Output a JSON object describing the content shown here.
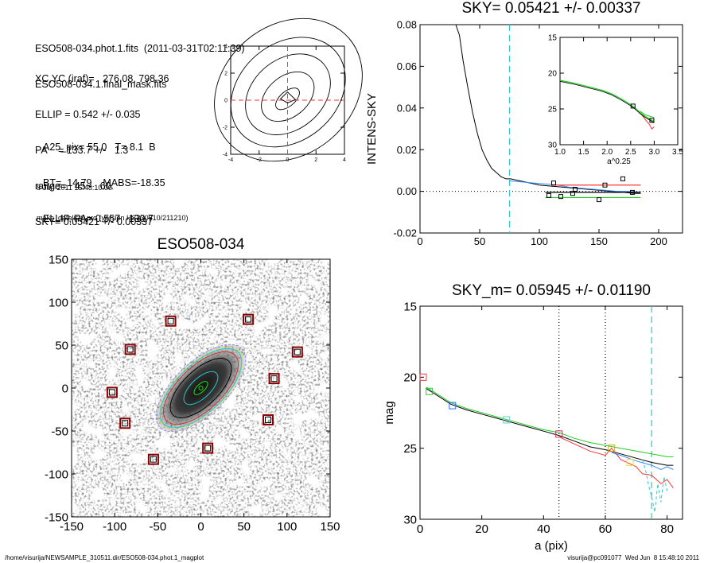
{
  "header": {
    "line1": "ESO508-034.phot.1.fits  (2011-03-31T02:11:39)",
    "line2": "ESO508-034.1.final_mask.fits",
    "xcyc": "XC,YC (iraf)=   276.08, 798.36",
    "ellip": "ELLIP = 0.542 +/- 0.035",
    "pa": "PA    = 133.7 +/-   1.3",
    "range": "range=   45.-   60.",
    "sky": "SKY= 0.05421 +/- 0.00337",
    "a25": "A25_pix= 55.0   T= 8.1  B",
    "bt": "BT=  14.79    MABS=-18.35",
    "ellip_pa": "ELLIP, PA= 0.557   130.7",
    "date": "8-Jun-2011 15:48:10.00",
    "prog": "make_datalist0.pro (version HS230610/211210)"
  },
  "footer": {
    "path": "/home/visurija/NEWSAMPLE_310511.dir/ESO508-034.phot.1_magplot",
    "user": "visurija@pc091077  Wed Jun  8 15:48:10 2011"
  },
  "chart_data": [
    {
      "id": "contour",
      "type": "contour",
      "xlim": [
        -4,
        4
      ],
      "ylim": [
        -4,
        4
      ],
      "xticks": [
        "-4",
        "-2",
        "0",
        "2",
        "4"
      ],
      "yticks": [
        "-4",
        "-2",
        "0",
        "2",
        "4"
      ],
      "colors": {
        "crosshair": "#ff3333",
        "contour": "#000000"
      }
    },
    {
      "id": "intens",
      "type": "line",
      "title": "SKY= 0.05421 +/- 0.00337",
      "ylabel": "INTENS-SKY",
      "xlim": [
        0,
        220
      ],
      "ylim": [
        -0.02,
        0.08
      ],
      "xticks": [
        "0",
        "50",
        "100",
        "150",
        "200"
      ],
      "yticks": [
        "-0.02",
        "0.00",
        "0.02",
        "0.04",
        "0.06",
        "0.08"
      ],
      "vline_x": 75,
      "black_profile": {
        "x": [
          30,
          33,
          36,
          40,
          44,
          48,
          52,
          56,
          60,
          64,
          68,
          72,
          76,
          80,
          84,
          88,
          92,
          96,
          100,
          110,
          120,
          130,
          140,
          150,
          160,
          170,
          180,
          185
        ],
        "y": [
          0.08,
          0.075,
          0.063,
          0.05,
          0.038,
          0.028,
          0.02,
          0.015,
          0.011,
          0.009,
          0.007,
          0.006,
          0.006,
          0.0055,
          0.005,
          0.0045,
          0.004,
          0.0035,
          0.003,
          0.0025,
          0.002,
          0.0015,
          0.001,
          0.0005,
          0.0,
          -0.0005,
          -0.001,
          -0.001
        ]
      },
      "blue_profile": {
        "x": [
          75,
          85,
          95,
          105,
          115,
          125,
          135,
          145,
          155,
          165,
          175,
          185
        ],
        "y": [
          0.005,
          0.0045,
          0.004,
          0.0035,
          0.003,
          0.002,
          0.0015,
          0.001,
          0.0005,
          0.0,
          0.0,
          -0.0005
        ]
      },
      "sky_levels": [
        {
          "color": "#ff3333",
          "y": 0.003,
          "x": [
            110,
            185
          ]
        },
        {
          "color": "#000000",
          "y": -0.0005,
          "x": [
            105,
            185
          ]
        },
        {
          "color": "#22cc22",
          "y": -0.003,
          "x": [
            105,
            185
          ]
        }
      ],
      "squares": [
        [
          108,
          -0.002
        ],
        [
          112,
          0.004
        ],
        [
          128,
          -0.001
        ],
        [
          130,
          0.001
        ],
        [
          150,
          -0.004
        ],
        [
          155,
          0.003
        ],
        [
          170,
          0.006
        ],
        [
          178,
          -0.0005
        ],
        [
          118,
          -0.0025
        ]
      ]
    },
    {
      "id": "inset",
      "type": "line",
      "xlabel": "a^0.25",
      "xlim": [
        1.0,
        3.5
      ],
      "ylim": [
        30,
        15
      ],
      "xticks": [
        "1.0",
        "1.5",
        "2.0",
        "2.5",
        "3.0",
        "3.5"
      ],
      "yticks": [
        "15",
        "20",
        "25",
        "30"
      ],
      "profile": {
        "x": [
          1.0,
          1.3,
          1.6,
          1.9,
          2.1,
          2.3,
          2.5,
          2.6,
          2.7,
          2.8,
          2.9,
          3.0
        ],
        "y": [
          21.0,
          21.4,
          21.9,
          22.4,
          22.9,
          23.6,
          24.4,
          24.9,
          25.5,
          26.0,
          26.4,
          26.8
        ]
      },
      "red_tail": {
        "x": [
          2.7,
          2.8,
          2.9,
          2.95,
          3.0
        ],
        "y": [
          25.5,
          26.4,
          27.2,
          27.8,
          27.5
        ]
      },
      "green_tail": {
        "x": [
          2.7,
          2.8,
          2.9,
          3.0
        ],
        "y": [
          25.3,
          25.8,
          26.0,
          26.2
        ]
      },
      "squares": [
        [
          2.55,
          24.6
        ],
        [
          2.95,
          26.6
        ]
      ]
    },
    {
      "id": "image",
      "type": "image",
      "title": "ESO508-034",
      "xlim": [
        -150,
        150
      ],
      "ylim": [
        -150,
        150
      ],
      "xticks": [
        "-150",
        "-100",
        "-50",
        "0",
        "50",
        "100",
        "150"
      ],
      "yticks": [
        "-150",
        "-100",
        "-50",
        "0",
        "50",
        "100",
        "150"
      ],
      "pa_deg": 133.7,
      "ellipses": [
        {
          "a": 10,
          "color": "#22dd22"
        },
        {
          "a": 25,
          "color": "#22cccc"
        },
        {
          "a": 45,
          "color": "#000000"
        },
        {
          "a": 55,
          "color": "#cc3333"
        },
        {
          "a": 60,
          "color": "#22cccc"
        },
        {
          "a": 62,
          "color": "#e6e64d"
        },
        {
          "a": 66,
          "color": "#8888ff"
        }
      ],
      "boxes": [
        [
          -82,
          45
        ],
        [
          -103,
          -5
        ],
        [
          -88,
          -41
        ],
        [
          -35,
          78
        ],
        [
          55,
          80
        ],
        [
          112,
          42
        ],
        [
          85,
          11
        ],
        [
          78,
          -37
        ],
        [
          8,
          -70
        ],
        [
          -55,
          -83
        ]
      ]
    },
    {
      "id": "mag",
      "type": "line",
      "title": "SKY_m=  0.05945 +/- 0.01190",
      "xlabel": "a (pix)",
      "ylabel": "mag",
      "xlim": [
        0,
        85
      ],
      "ylim": [
        30,
        15
      ],
      "xticks": [
        "0",
        "20",
        "40",
        "60",
        "80"
      ],
      "yticks": [
        "15",
        "20",
        "25",
        "30"
      ],
      "vlines": [
        {
          "x": 45,
          "color": "#000000",
          "style": "dotted"
        },
        {
          "x": 60,
          "color": "#000000",
          "style": "dotted"
        },
        {
          "x": 75,
          "color": "#22cccc",
          "style": "dashed"
        }
      ],
      "series": [
        {
          "color": "#000000",
          "x": [
            2,
            5,
            10,
            15,
            20,
            25,
            30,
            35,
            40,
            45,
            50,
            55,
            60,
            65,
            70,
            75,
            80,
            82
          ],
          "y": [
            20.8,
            21.2,
            21.9,
            22.3,
            22.6,
            22.9,
            23.2,
            23.5,
            23.8,
            24.1,
            24.5,
            24.9,
            25.1,
            25.4,
            25.7,
            26.0,
            26.2,
            26.2
          ]
        },
        {
          "color": "#22cc22",
          "x": [
            2,
            5,
            10,
            15,
            20,
            25,
            30,
            35,
            40,
            45,
            50,
            55,
            60,
            65,
            70,
            75,
            80,
            82
          ],
          "y": [
            20.7,
            21.1,
            21.8,
            22.2,
            22.5,
            22.8,
            23.1,
            23.4,
            23.7,
            23.9,
            24.3,
            24.6,
            24.8,
            25.0,
            25.2,
            25.4,
            25.6,
            25.6
          ]
        },
        {
          "color": "#ff3333",
          "x": [
            45,
            50,
            55,
            60,
            62,
            65,
            70,
            72,
            75,
            78,
            80,
            82
          ],
          "y": [
            24.2,
            24.7,
            25.2,
            25.5,
            25.0,
            25.8,
            26.3,
            26.8,
            26.9,
            27.5,
            27.2,
            27.8
          ]
        },
        {
          "color": "#3388ff",
          "x": [
            62,
            65,
            70,
            75,
            78,
            80,
            82
          ],
          "y": [
            25.3,
            25.5,
            25.9,
            26.2,
            26.5,
            26.3,
            26.5
          ]
        }
      ],
      "cyan_tail": {
        "x": [
          72,
          73,
          74,
          75,
          76,
          77,
          78,
          79,
          80
        ],
        "y": [
          25.8,
          26.5,
          27.6,
          28.4,
          29.5,
          27.5,
          28.8,
          27.0,
          28.0
        ]
      },
      "squares": [
        {
          "x": 1,
          "y": 20,
          "color": "#ff3333"
        },
        {
          "x": 3,
          "y": 21,
          "color": "#22cc22"
        },
        {
          "x": 10.5,
          "y": 22,
          "color": "#3366ff"
        },
        {
          "x": 28,
          "y": 23,
          "color": "#66cccc"
        },
        {
          "x": 45,
          "y": 24,
          "color": "#cc3366"
        },
        {
          "x": 62,
          "y": 25,
          "color": "#ccaa22"
        },
        {
          "x": 68,
          "y": 26,
          "color": "#e6e64d"
        }
      ]
    }
  ]
}
